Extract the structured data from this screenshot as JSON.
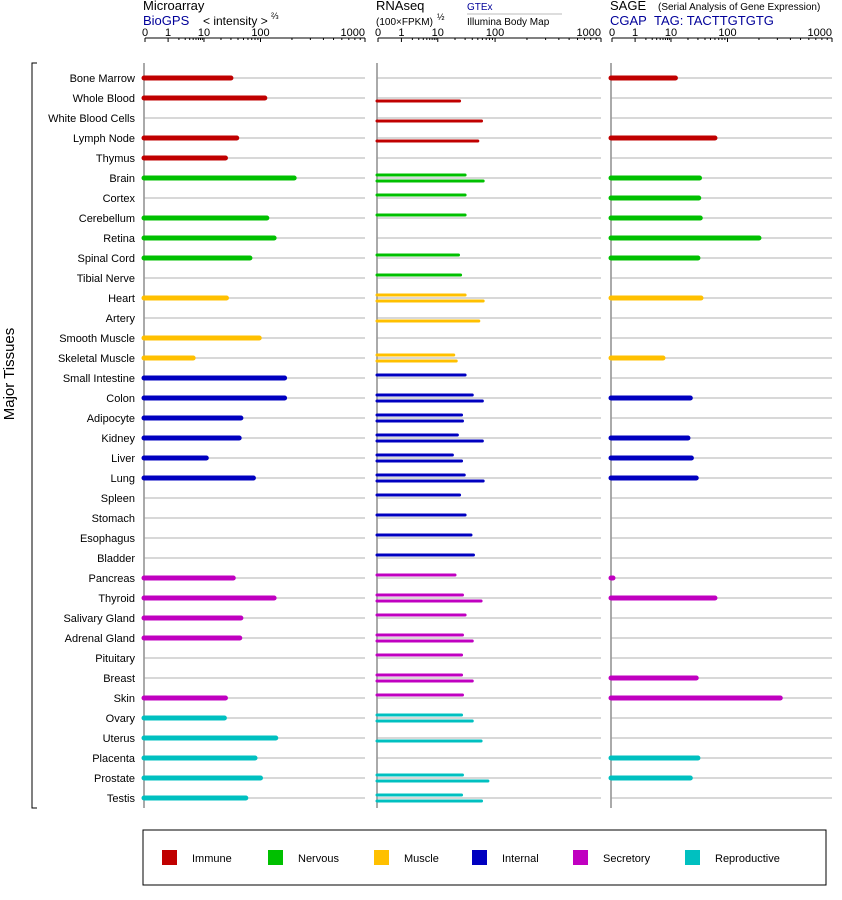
{
  "chart_data": {
    "type": "bar",
    "ylabel": "Major Tissues",
    "tissues": [
      "Bone Marrow",
      "Whole Blood",
      "White Blood Cells",
      "Lymph Node",
      "Thymus",
      "Brain",
      "Cortex",
      "Cerebellum",
      "Retina",
      "Spinal Cord",
      "Tibial Nerve",
      "Heart",
      "Artery",
      "Smooth Muscle",
      "Skeletal Muscle",
      "Small Intestine",
      "Colon",
      "Adipocyte",
      "Kidney",
      "Liver",
      "Lung",
      "Spleen",
      "Stomach",
      "Esophagus",
      "Bladder",
      "Pancreas",
      "Thyroid",
      "Salivary Gland",
      "Adrenal Gland",
      "Pituitary",
      "Breast",
      "Skin",
      "Ovary",
      "Uterus",
      "Placenta",
      "Prostate",
      "Testis"
    ],
    "groups": [
      "Immune",
      "Immune",
      "Immune",
      "Immune",
      "Immune",
      "Nervous",
      "Nervous",
      "Nervous",
      "Nervous",
      "Nervous",
      "Nervous",
      "Muscle",
      "Muscle",
      "Muscle",
      "Muscle",
      "Internal",
      "Internal",
      "Internal",
      "Internal",
      "Internal",
      "Internal",
      "Internal",
      "Internal",
      "Internal",
      "Internal",
      "Secretory",
      "Secretory",
      "Secretory",
      "Secretory",
      "Secretory",
      "Secretory",
      "Secretory",
      "Reproductive",
      "Reproductive",
      "Reproductive",
      "Reproductive",
      "Reproductive"
    ],
    "panels": [
      {
        "title": "Microarray",
        "source": "BioGPS",
        "scale_label": "< intensity >",
        "scale_exp": "⅔",
        "ticks": [
          "0",
          "1",
          "10",
          "100",
          "1000"
        ],
        "tick_values": [
          0,
          1,
          10,
          100,
          1000
        ],
        "values": [
          30,
          110,
          null,
          38,
          24,
          210,
          null,
          115,
          135,
          65,
          null,
          25,
          null,
          95,
          5,
          170,
          170,
          45,
          42,
          11,
          75,
          null,
          null,
          null,
          null,
          33,
          135,
          45,
          43,
          null,
          null,
          24,
          23,
          140,
          80,
          100,
          55
        ]
      },
      {
        "title": "RNAseq",
        "source_top": "GTEx",
        "source_bottom": "Illumina Body Map",
        "scale_label": "(100×FPKM)",
        "scale_exp": "½",
        "ticks": [
          "0",
          "1",
          "10",
          "100",
          "1000"
        ],
        "tick_values": [
          0,
          1,
          10,
          100,
          1000
        ],
        "values_gtex": [
          null,
          null,
          null,
          null,
          null,
          30,
          30,
          30,
          null,
          23,
          25,
          30,
          null,
          null,
          19,
          30,
          40,
          26,
          22,
          18,
          29,
          24,
          30,
          38,
          42,
          20,
          27,
          30,
          27,
          26,
          26,
          27,
          26,
          null,
          null,
          27,
          26
        ],
        "values_ibm": [
          null,
          24,
          58,
          50,
          null,
          62,
          null,
          null,
          null,
          null,
          null,
          62,
          52,
          null,
          21,
          null,
          60,
          27,
          60,
          26,
          62,
          null,
          null,
          null,
          null,
          null,
          57,
          null,
          40,
          null,
          40,
          null,
          40,
          57,
          null,
          75,
          58
        ]
      },
      {
        "title": "SAGE",
        "subtitle": "(Serial Analysis of Gene Expression)",
        "source": "CGAP",
        "tag_label": "TAG: TACTTGTGTG",
        "ticks": [
          "0",
          "1",
          "10",
          "100",
          "1000"
        ],
        "tick_values": [
          0,
          1,
          10,
          100,
          1000
        ],
        "values": [
          12,
          null,
          null,
          60,
          null,
          32,
          31,
          33,
          200,
          30,
          null,
          34,
          null,
          null,
          6,
          null,
          22,
          null,
          20,
          23,
          28,
          null,
          null,
          null,
          null,
          0.01,
          60,
          null,
          null,
          null,
          28,
          320,
          null,
          null,
          30,
          22,
          null
        ]
      }
    ],
    "legend": [
      {
        "name": "Immune",
        "color": "#c00000"
      },
      {
        "name": "Nervous",
        "color": "#00c000"
      },
      {
        "name": "Muscle",
        "color": "#ffc000"
      },
      {
        "name": "Internal",
        "color": "#0000c0"
      },
      {
        "name": "Secretory",
        "color": "#c000c0"
      },
      {
        "name": "Reproductive",
        "color": "#00c0c0"
      }
    ],
    "colors": {
      "Immune": "#c00000",
      "Nervous": "#00c000",
      "Muscle": "#ffc000",
      "Internal": "#0000c0",
      "Secretory": "#c000c0",
      "Reproductive": "#00c0c0",
      "link": "#000099",
      "gridline": "#999999",
      "axis": "#000000"
    }
  }
}
